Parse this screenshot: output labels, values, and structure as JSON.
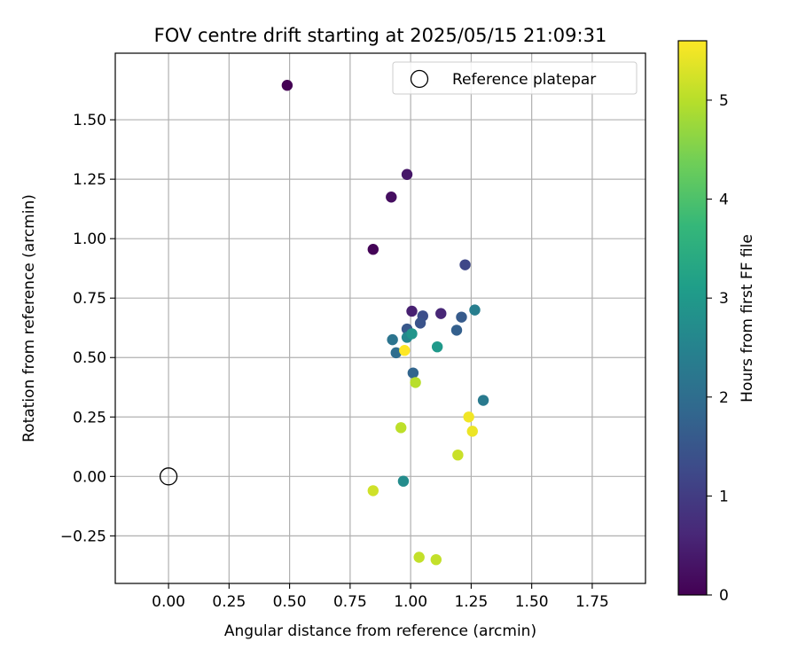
{
  "chart_data": {
    "type": "scatter",
    "title": "FOV centre drift starting at 2025/05/15 21:09:31",
    "xlabel": "Angular distance from reference (arcmin)",
    "ylabel": "Rotation from reference (arcmin)",
    "xlim": [
      -0.22,
      1.97
    ],
    "ylim": [
      -0.45,
      1.78
    ],
    "x_ticks": [
      0.0,
      0.25,
      0.5,
      0.75,
      1.0,
      1.25,
      1.5,
      1.75
    ],
    "x_tick_labels": [
      "0.00",
      "0.25",
      "0.50",
      "0.75",
      "1.00",
      "1.25",
      "1.50",
      "1.75"
    ],
    "y_ticks": [
      -0.25,
      0.0,
      0.25,
      0.5,
      0.75,
      1.0,
      1.25,
      1.5
    ],
    "y_tick_labels": [
      "−0.25",
      "0.00",
      "0.25",
      "0.50",
      "0.75",
      "1.00",
      "1.25",
      "1.50"
    ],
    "grid": true,
    "legend": {
      "position": "top-right",
      "entries": [
        "Reference platepar"
      ]
    },
    "reference": {
      "x": 0.0,
      "y": 0.0
    },
    "colorbar": {
      "label": "Hours from first FF file",
      "min": 0,
      "max": 5.6,
      "ticks": [
        0,
        1,
        2,
        3,
        4,
        5
      ],
      "colormap": "viridis"
    },
    "points": [
      {
        "x": 0.49,
        "y": 1.645,
        "hours": 0.0
      },
      {
        "x": 0.845,
        "y": 0.955,
        "hours": 0.05
      },
      {
        "x": 0.92,
        "y": 1.175,
        "hours": 0.2
      },
      {
        "x": 0.985,
        "y": 1.27,
        "hours": 0.35
      },
      {
        "x": 1.005,
        "y": 0.695,
        "hours": 0.5
      },
      {
        "x": 1.125,
        "y": 0.685,
        "hours": 0.6
      },
      {
        "x": 1.225,
        "y": 0.89,
        "hours": 1.2
      },
      {
        "x": 1.05,
        "y": 0.675,
        "hours": 1.35
      },
      {
        "x": 1.04,
        "y": 0.645,
        "hours": 1.45
      },
      {
        "x": 0.985,
        "y": 0.62,
        "hours": 1.55
      },
      {
        "x": 1.21,
        "y": 0.67,
        "hours": 1.6
      },
      {
        "x": 1.19,
        "y": 0.615,
        "hours": 1.7
      },
      {
        "x": 1.01,
        "y": 0.435,
        "hours": 1.8
      },
      {
        "x": 0.94,
        "y": 0.52,
        "hours": 2.0
      },
      {
        "x": 0.925,
        "y": 0.575,
        "hours": 2.15
      },
      {
        "x": 1.3,
        "y": 0.32,
        "hours": 2.3
      },
      {
        "x": 1.265,
        "y": 0.7,
        "hours": 2.4
      },
      {
        "x": 0.985,
        "y": 0.585,
        "hours": 2.6
      },
      {
        "x": 0.97,
        "y": -0.02,
        "hours": 2.7
      },
      {
        "x": 1.005,
        "y": 0.6,
        "hours": 2.9
      },
      {
        "x": 1.11,
        "y": 0.545,
        "hours": 3.0
      },
      {
        "x": 1.02,
        "y": 0.395,
        "hours": 5.0
      },
      {
        "x": 0.96,
        "y": 0.205,
        "hours": 5.05
      },
      {
        "x": 1.035,
        "y": -0.34,
        "hours": 5.1
      },
      {
        "x": 1.105,
        "y": -0.35,
        "hours": 5.1
      },
      {
        "x": 1.195,
        "y": 0.09,
        "hours": 5.15
      },
      {
        "x": 0.845,
        "y": -0.06,
        "hours": 5.2
      },
      {
        "x": 1.24,
        "y": 0.25,
        "hours": 5.5
      },
      {
        "x": 1.255,
        "y": 0.19,
        "hours": 5.45
      },
      {
        "x": 0.975,
        "y": 0.53,
        "hours": 5.6
      }
    ]
  }
}
